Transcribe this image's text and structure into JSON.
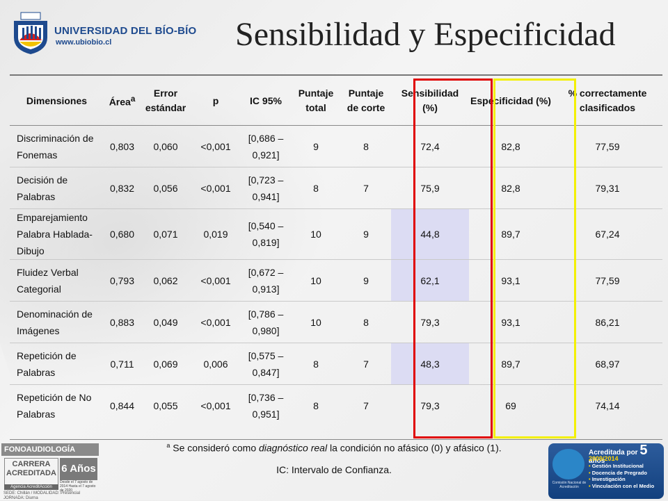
{
  "header": {
    "university_name": "UNIVERSIDAD DEL BÍO-BÍO",
    "university_url": "www.ubiobio.cl",
    "title": "Sensibilidad y Especificidad"
  },
  "table": {
    "columns": [
      {
        "label": "Dimensiones"
      },
      {
        "label": "Área",
        "sup": "a"
      },
      {
        "label": "Error estándar"
      },
      {
        "label": "p"
      },
      {
        "label": "IC 95%"
      },
      {
        "label": "Puntaje total"
      },
      {
        "label": "Puntaje de corte"
      },
      {
        "label": "Sensibilidad (%)"
      },
      {
        "label": "Especificidad (%)"
      },
      {
        "label": "% correctamente clasificados"
      }
    ],
    "rows": [
      {
        "dim": "Discriminación de Fonemas",
        "area": "0,803",
        "se": "0,060",
        "p": "<0,001",
        "ic": "[0,686 – 0,921]",
        "total": "9",
        "corte": "8",
        "sens": "72,4",
        "espec": "82,8",
        "pct": "77,59",
        "highlight_sens": false
      },
      {
        "dim": "Decisión de Palabras",
        "area": "0,832",
        "se": "0,056",
        "p": "<0,001",
        "ic": "[0,723 – 0,941]",
        "total": "8",
        "corte": "7",
        "sens": "75,9",
        "espec": "82,8",
        "pct": "79,31",
        "highlight_sens": false
      },
      {
        "dim": "Emparejamiento Palabra Hablada-Dibujo",
        "area": "0,680",
        "se": "0,071",
        "p": "0,019",
        "ic": "[0,540 – 0,819]",
        "total": "10",
        "corte": "9",
        "sens": "44,8",
        "espec": "89,7",
        "pct": "67,24",
        "highlight_sens": true
      },
      {
        "dim": "Fluidez Verbal Categorial",
        "area": "0,793",
        "se": "0,062",
        "p": "<0,001",
        "ic": "[0,672 – 0,913]",
        "total": "10",
        "corte": "9",
        "sens": "62,1",
        "espec": "93,1",
        "pct": "77,59",
        "highlight_sens": true
      },
      {
        "dim": "Denominación de Imágenes",
        "area": "0,883",
        "se": "0,049",
        "p": "<0,001",
        "ic": "[0,786 – 0,980]",
        "total": "10",
        "corte": "8",
        "sens": "79,3",
        "espec": "93,1",
        "pct": "86,21",
        "highlight_sens": false
      },
      {
        "dim": "Repetición de Palabras",
        "area": "0,711",
        "se": "0,069",
        "p": "0,006",
        "ic": "[0,575 – 0,847]",
        "total": "8",
        "corte": "7",
        "sens": "48,3",
        "espec": "89,7",
        "pct": "68,97",
        "highlight_sens": true
      },
      {
        "dim": "Repetición de No Palabras",
        "area": "0,844",
        "se": "0,055",
        "p": "<0,001",
        "ic": "[0,736 – 0,951]",
        "total": "8",
        "corte": "7",
        "sens": "79,3",
        "espec": "69",
        "pct": "74,14",
        "highlight_sens": false
      }
    ],
    "colors": {
      "sensitivity_box": "#e00000",
      "specificity_box": "#f3f000",
      "highlight_fill": "#dcdcf3"
    }
  },
  "footnotes": {
    "note_a_sup": "a",
    "note_a_pre": " Se consideró como ",
    "note_a_em": "diagnóstico real",
    "note_a_post": " la condición no afásico (0) y afásico (1).",
    "ic": "IC: Intervalo de Confianza."
  },
  "badge_left": {
    "program": "FONOAUDIOLOGÍA",
    "carrera": "CARRERA",
    "acreditada": "ACREDITADA",
    "agencia": "Agencia AcreditAcción",
    "years": "6 Años",
    "desde": "Desde el 7 agosto de 2014 Hasta el 7 agosto de 2020",
    "sede": "SEDE: Chillán / MODALIDAD: Presencial JORNADA: Diurna"
  },
  "badge_right": {
    "acreditada": "Acreditada por",
    "number": "5",
    "anos": "años",
    "period": "2009/2014",
    "agency": "Comisión Nacional de Acreditación",
    "areas": [
      "Gestión Institucional",
      "Docencia de Pregrado",
      "Investigación",
      "Vinculación con el Medio"
    ]
  }
}
